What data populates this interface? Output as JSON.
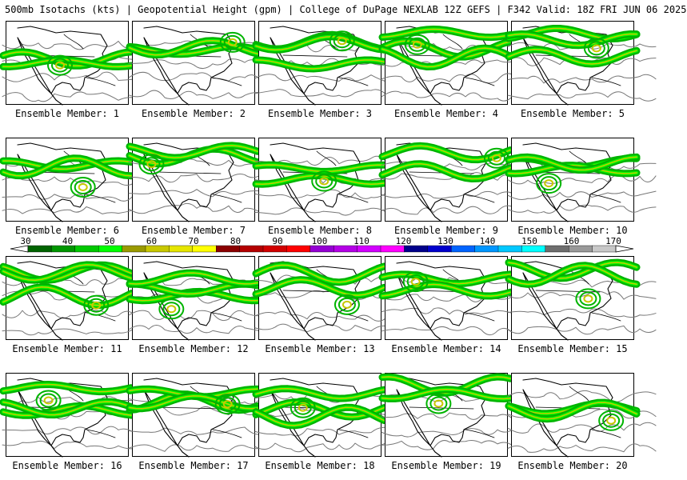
{
  "header": {
    "title": "500mb Isotachs (kts) | Geopotential Height (gpm) | College of DuPage NEXLAB   12Z GEFS | F342 Valid: 18Z FRI JUN 06 2025"
  },
  "panels": [
    {
      "label": "Ensemble Member: 1"
    },
    {
      "label": "Ensemble Member: 2"
    },
    {
      "label": "Ensemble Member: 3"
    },
    {
      "label": "Ensemble Member: 4"
    },
    {
      "label": "Ensemble Member: 5"
    },
    {
      "label": "Ensemble Member: 6"
    },
    {
      "label": "Ensemble Member: 7"
    },
    {
      "label": "Ensemble Member: 8"
    },
    {
      "label": "Ensemble Member: 9"
    },
    {
      "label": "Ensemble Member: 10"
    },
    {
      "label": "Ensemble Member: 11"
    },
    {
      "label": "Ensemble Member: 12"
    },
    {
      "label": "Ensemble Member: 13"
    },
    {
      "label": "Ensemble Member: 14"
    },
    {
      "label": "Ensemble Member: 15"
    },
    {
      "label": "Ensemble Member: 16"
    },
    {
      "label": "Ensemble Member: 17"
    },
    {
      "label": "Ensemble Member: 18"
    },
    {
      "label": "Ensemble Member: 19"
    },
    {
      "label": "Ensemble Member: 20"
    }
  ],
  "colorbar": {
    "ticks": [
      "30",
      "40",
      "50",
      "60",
      "70",
      "80",
      "90",
      "100",
      "110",
      "120",
      "130",
      "140",
      "150",
      "160",
      "170"
    ],
    "colors": [
      "#006400",
      "#009600",
      "#00c800",
      "#00ff00",
      "#9a9a00",
      "#c8c800",
      "#e6e600",
      "#ffff00",
      "#8b0000",
      "#b40000",
      "#d20000",
      "#ff0000",
      "#9400d3",
      "#b400e6",
      "#d200ff",
      "#ff00ff",
      "#00008b",
      "#0000cd",
      "#0064ff",
      "#0096ff",
      "#00c8ff",
      "#00ffff",
      "#6e6e6e",
      "#999999",
      "#c8c8c8"
    ]
  }
}
